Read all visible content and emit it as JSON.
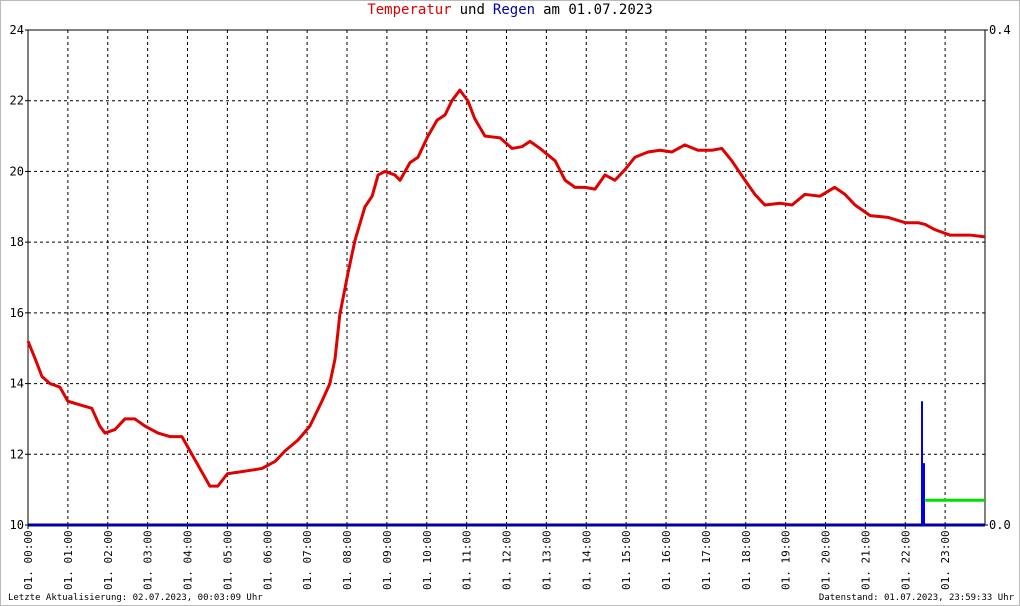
{
  "chart_data": {
    "type": "line",
    "title": [
      {
        "text": "Temperatur",
        "color": "#e00000"
      },
      {
        "text": "und",
        "color": "#000000"
      },
      {
        "text": "Regen",
        "color": "#0000a0"
      },
      {
        "text": "am 01.07.2023",
        "color": "#000000"
      }
    ],
    "xlim": [
      0,
      24
    ],
    "xticks": [
      {
        "value": 0,
        "label": "01. 00:00"
      },
      {
        "value": 1,
        "label": "01. 01:00"
      },
      {
        "value": 2,
        "label": "01. 02:00"
      },
      {
        "value": 3,
        "label": "01. 03:00"
      },
      {
        "value": 4,
        "label": "01. 04:00"
      },
      {
        "value": 5,
        "label": "01. 05:00"
      },
      {
        "value": 6,
        "label": "01. 06:00"
      },
      {
        "value": 7,
        "label": "01. 07:00"
      },
      {
        "value": 8,
        "label": "01. 08:00"
      },
      {
        "value": 9,
        "label": "01. 09:00"
      },
      {
        "value": 10,
        "label": "01. 10:00"
      },
      {
        "value": 11,
        "label": "01. 11:00"
      },
      {
        "value": 12,
        "label": "01. 12:00"
      },
      {
        "value": 13,
        "label": "01. 13:00"
      },
      {
        "value": 14,
        "label": "01. 14:00"
      },
      {
        "value": 15,
        "label": "01. 15:00"
      },
      {
        "value": 16,
        "label": "01. 16:00"
      },
      {
        "value": 17,
        "label": "01. 17:00"
      },
      {
        "value": 18,
        "label": "01. 18:00"
      },
      {
        "value": 19,
        "label": "01. 19:00"
      },
      {
        "value": 20,
        "label": "01. 20:00"
      },
      {
        "value": 21,
        "label": "01. 21:00"
      },
      {
        "value": 22,
        "label": "01. 22:00"
      },
      {
        "value": 23,
        "label": "01. 23:00"
      }
    ],
    "ylim": [
      10,
      24
    ],
    "yticks": [
      10,
      12,
      14,
      16,
      18,
      20,
      22,
      24
    ],
    "y2lim": [
      0,
      0.4
    ],
    "y2ticks": [
      {
        "value": 0,
        "label": "0.0"
      },
      {
        "value": 0.4,
        "label": "0.4"
      }
    ],
    "grid": true,
    "series": [
      {
        "type": "line",
        "color": "#e00000",
        "x": [
          0,
          0.18,
          0.35,
          0.55,
          0.8,
          1.0,
          1.3,
          1.6,
          1.8,
          1.93,
          2.18,
          2.43,
          2.68,
          2.93,
          3.26,
          3.56,
          3.86,
          4.06,
          4.31,
          4.56,
          4.76,
          5.0,
          5.3,
          5.6,
          5.87,
          6.2,
          6.45,
          6.77,
          7.07,
          7.37,
          7.57,
          7.7,
          7.82,
          8.02,
          8.2,
          8.45,
          8.63,
          8.78,
          8.95,
          9.2,
          9.33,
          9.58,
          9.78,
          10.03,
          10.26,
          10.46,
          10.63,
          10.83,
          11.03,
          11.2,
          11.46,
          11.84,
          12.14,
          12.39,
          12.59,
          12.84,
          13.22,
          13.47,
          13.72,
          13.97,
          14.22,
          14.47,
          14.72,
          14.97,
          15.22,
          15.55,
          15.85,
          16.15,
          16.47,
          16.8,
          17.15,
          17.4,
          17.65,
          17.98,
          18.23,
          18.48,
          18.86,
          19.16,
          19.48,
          19.86,
          20.23,
          20.49,
          20.74,
          21.12,
          21.57,
          22.0,
          22.32,
          22.5,
          22.75,
          23.12,
          23.62,
          24.0
        ],
        "values": [
          15.2,
          14.7,
          14.2,
          14.0,
          13.9,
          13.5,
          13.4,
          13.3,
          12.8,
          12.6,
          12.7,
          13.0,
          13.0,
          12.8,
          12.6,
          12.5,
          12.5,
          12.1,
          11.6,
          11.1,
          11.1,
          11.45,
          11.5,
          11.55,
          11.6,
          11.8,
          12.1,
          12.4,
          12.8,
          13.5,
          14.0,
          14.7,
          15.95,
          17.1,
          18.05,
          19.0,
          19.3,
          19.9,
          20.0,
          19.9,
          19.75,
          20.25,
          20.4,
          21.0,
          21.45,
          21.6,
          22.0,
          22.3,
          22.0,
          21.5,
          21.0,
          20.95,
          20.65,
          20.7,
          20.85,
          20.65,
          20.3,
          19.75,
          19.55,
          19.55,
          19.5,
          19.9,
          19.75,
          20.05,
          20.4,
          20.55,
          20.6,
          20.55,
          20.75,
          20.6,
          20.6,
          20.65,
          20.3,
          19.75,
          19.35,
          19.05,
          19.1,
          19.05,
          19.35,
          19.3,
          19.55,
          19.35,
          19.05,
          18.75,
          18.7,
          18.55,
          18.55,
          18.5,
          18.35,
          18.2,
          18.2,
          18.15
        ]
      },
      {
        "type": "bar",
        "axis": "y2",
        "color": "#0000e0",
        "x": [
          22.42,
          22.47
        ],
        "values": [
          0.1,
          0.05
        ]
      },
      {
        "type": "line",
        "axis": "y2",
        "color": "#00e000",
        "x": [
          22.5,
          24
        ],
        "values": [
          0.02,
          0.02
        ]
      }
    ],
    "footer": {
      "left": "Letzte Aktualisierung: 02.07.2023, 00:03:09 Uhr",
      "right": "Datenstand: 01.07.2023, 23:59:33 Uhr"
    }
  }
}
